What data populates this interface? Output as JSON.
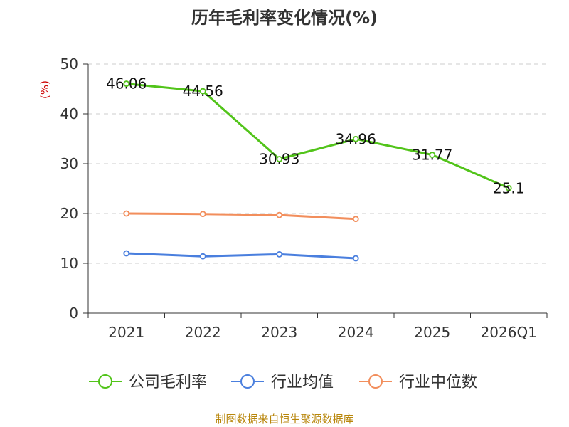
{
  "chart_data": {
    "type": "line",
    "title": "历年毛利率变化情况(%)",
    "ylabel": "(%)",
    "xlabel": "",
    "categories": [
      "2021",
      "2022",
      "2023",
      "2024",
      "2025",
      "2026Q1"
    ],
    "ylim": [
      0,
      50
    ],
    "yticks": [
      0,
      10,
      20,
      30,
      40,
      50
    ],
    "grid": "horizontal dashed",
    "legend_position": "bottom",
    "series": [
      {
        "name": "公司毛利率",
        "color": "#52c41a",
        "values": [
          46.06,
          44.56,
          30.93,
          34.96,
          31.77,
          25.1
        ],
        "labels": [
          "46.06",
          "44.56",
          "30.93",
          "34.96",
          "31.77",
          "25.1"
        ]
      },
      {
        "name": "行业均值",
        "color": "#4a7fde",
        "values": [
          12.0,
          11.4,
          11.8,
          11.0,
          null,
          null
        ]
      },
      {
        "name": "行业中位数",
        "color": "#f28e5c",
        "values": [
          20.0,
          19.9,
          19.7,
          18.9,
          null,
          null
        ]
      }
    ]
  },
  "footer": {
    "source": "制图数据来自恒生聚源数据库"
  },
  "colors": {
    "title": "#333333",
    "axis": "#333333",
    "grid": "#cccccc",
    "ylabel": "#cc0000",
    "source": "#b8860b"
  }
}
